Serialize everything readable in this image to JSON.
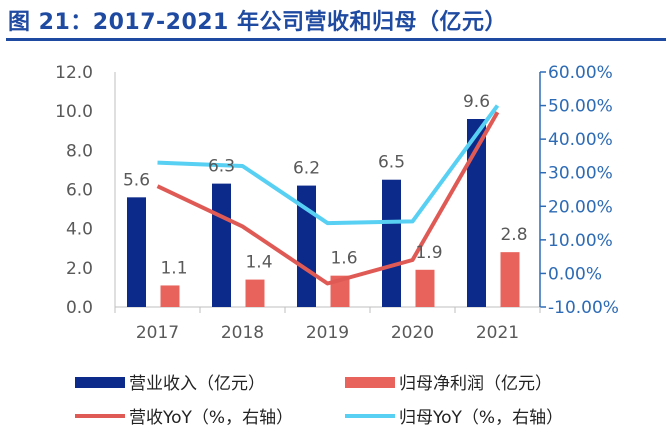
{
  "title": "图 21：2017-2021 年公司营收和归母（亿元）",
  "colors": {
    "title": "#1f4aa1",
    "revenue_bar": "#0c2a8a",
    "net_profit_bar": "#e8635c",
    "revenue_yoy_line": "#e05a55",
    "net_profit_yoy_line": "#57d0f3",
    "right_axis": "#2e6bb5"
  },
  "chart_data": {
    "type": "bar",
    "categories": [
      "2017",
      "2018",
      "2019",
      "2020",
      "2021"
    ],
    "series": [
      {
        "name": "营业收入（亿元）",
        "type": "bar",
        "axis": "left",
        "values": [
          5.6,
          6.3,
          6.2,
          6.5,
          9.6
        ],
        "labels": [
          "5.6",
          "6.3",
          "6.2",
          "6.5",
          "9.6"
        ]
      },
      {
        "name": "归母净利润（亿元）",
        "type": "bar",
        "axis": "left",
        "values": [
          1.1,
          1.4,
          1.6,
          1.9,
          2.8
        ],
        "labels": [
          "1.1",
          "1.4",
          "1.6",
          "1.9",
          "2.8"
        ]
      },
      {
        "name": "营收YoY（%，右轴）",
        "type": "line",
        "axis": "right",
        "values": [
          26,
          14,
          -3,
          4,
          48
        ]
      },
      {
        "name": "归母YoY（%，右轴）",
        "type": "line",
        "axis": "right",
        "values": [
          33,
          32,
          15,
          15.5,
          50
        ]
      }
    ],
    "y_left": {
      "min": 0,
      "max": 12,
      "ticks": [
        "0.0",
        "2.0",
        "4.0",
        "6.0",
        "8.0",
        "10.0",
        "12.0"
      ]
    },
    "y_right": {
      "min": -10,
      "max": 60,
      "ticks": [
        "-10.00%",
        "0.00%",
        "10.00%",
        "20.00%",
        "30.00%",
        "40.00%",
        "50.00%",
        "60.00%"
      ]
    },
    "legend_position": "bottom",
    "grid": false
  }
}
